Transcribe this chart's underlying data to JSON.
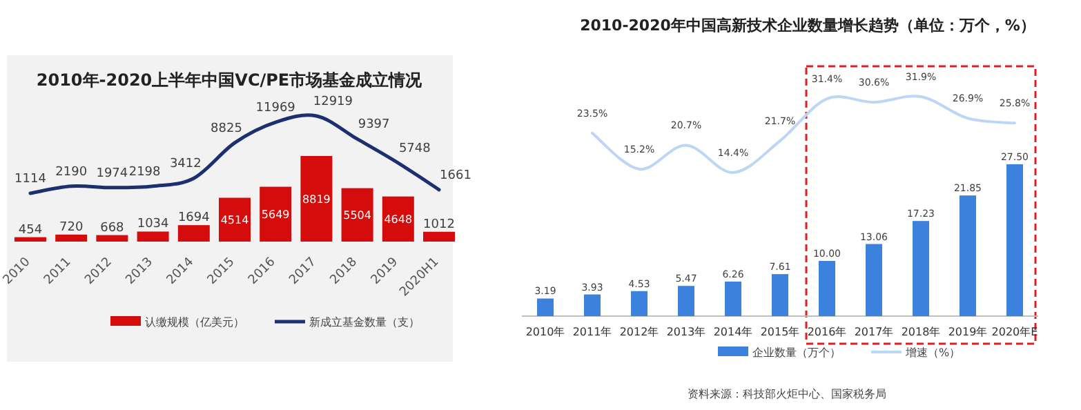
{
  "chart_data": [
    {
      "type": "bar",
      "title": "2010年-2020上半年中国VC/PE市场基金成立情况",
      "categories": [
        "2010",
        "2011",
        "2012",
        "2013",
        "2014",
        "2015",
        "2016",
        "2017",
        "2018",
        "2019",
        "2020H1"
      ],
      "data_labels": true,
      "legend": "bottom",
      "series": [
        {
          "name": "认缴规模（亿美元）",
          "color": "#d40c0c",
          "values": [
            454,
            720,
            668,
            1034,
            1694,
            4514,
            5649,
            8819,
            5504,
            4648,
            1012
          ]
        },
        {
          "name": "新成立基金数量（支）",
          "type": "line",
          "axis": "y2",
          "color": "#1c2f6e",
          "values": [
            1114,
            2190,
            1974,
            2198,
            3412,
            8825,
            11969,
            12919,
            9397,
            5748,
            1661
          ]
        }
      ]
    },
    {
      "type": "bar",
      "title": "2010-2020年中国高新技术企业数量增长趋势（单位：万个，%）",
      "categories": [
        "2010年",
        "2011年",
        "2012年",
        "2013年",
        "2014年",
        "2015年",
        "2016年",
        "2017年",
        "2018年",
        "2019年",
        "2020年E"
      ],
      "legend": "bottom",
      "series": [
        {
          "name": "企业数量（万个）",
          "color": "#3c82dc",
          "values": [
            3.19,
            3.93,
            4.53,
            5.47,
            6.26,
            7.61,
            10.0,
            13.06,
            17.23,
            21.85,
            27.5
          ],
          "value_labels": [
            "3.19",
            "3.93",
            "4.53",
            "5.47",
            "6.26",
            "7.61",
            "10.00",
            "13.06",
            "17.23",
            "21.85",
            "27.50"
          ]
        },
        {
          "name": "增速（%）",
          "type": "line",
          "axis": "y2",
          "color": "#bcd6f5",
          "values": [
            null,
            23.5,
            15.2,
            20.7,
            14.4,
            21.7,
            31.4,
            30.6,
            31.9,
            26.9,
            25.8
          ],
          "value_labels": [
            null,
            "23.5%",
            "15.2%",
            "20.7%",
            "14.4%",
            "21.7%",
            "31.4%",
            "30.6%",
            "31.9%",
            "26.9%",
            "25.8%"
          ]
        }
      ],
      "annotations": [
        "资料来源：科技部火炬中心、国家税务局"
      ]
    }
  ]
}
